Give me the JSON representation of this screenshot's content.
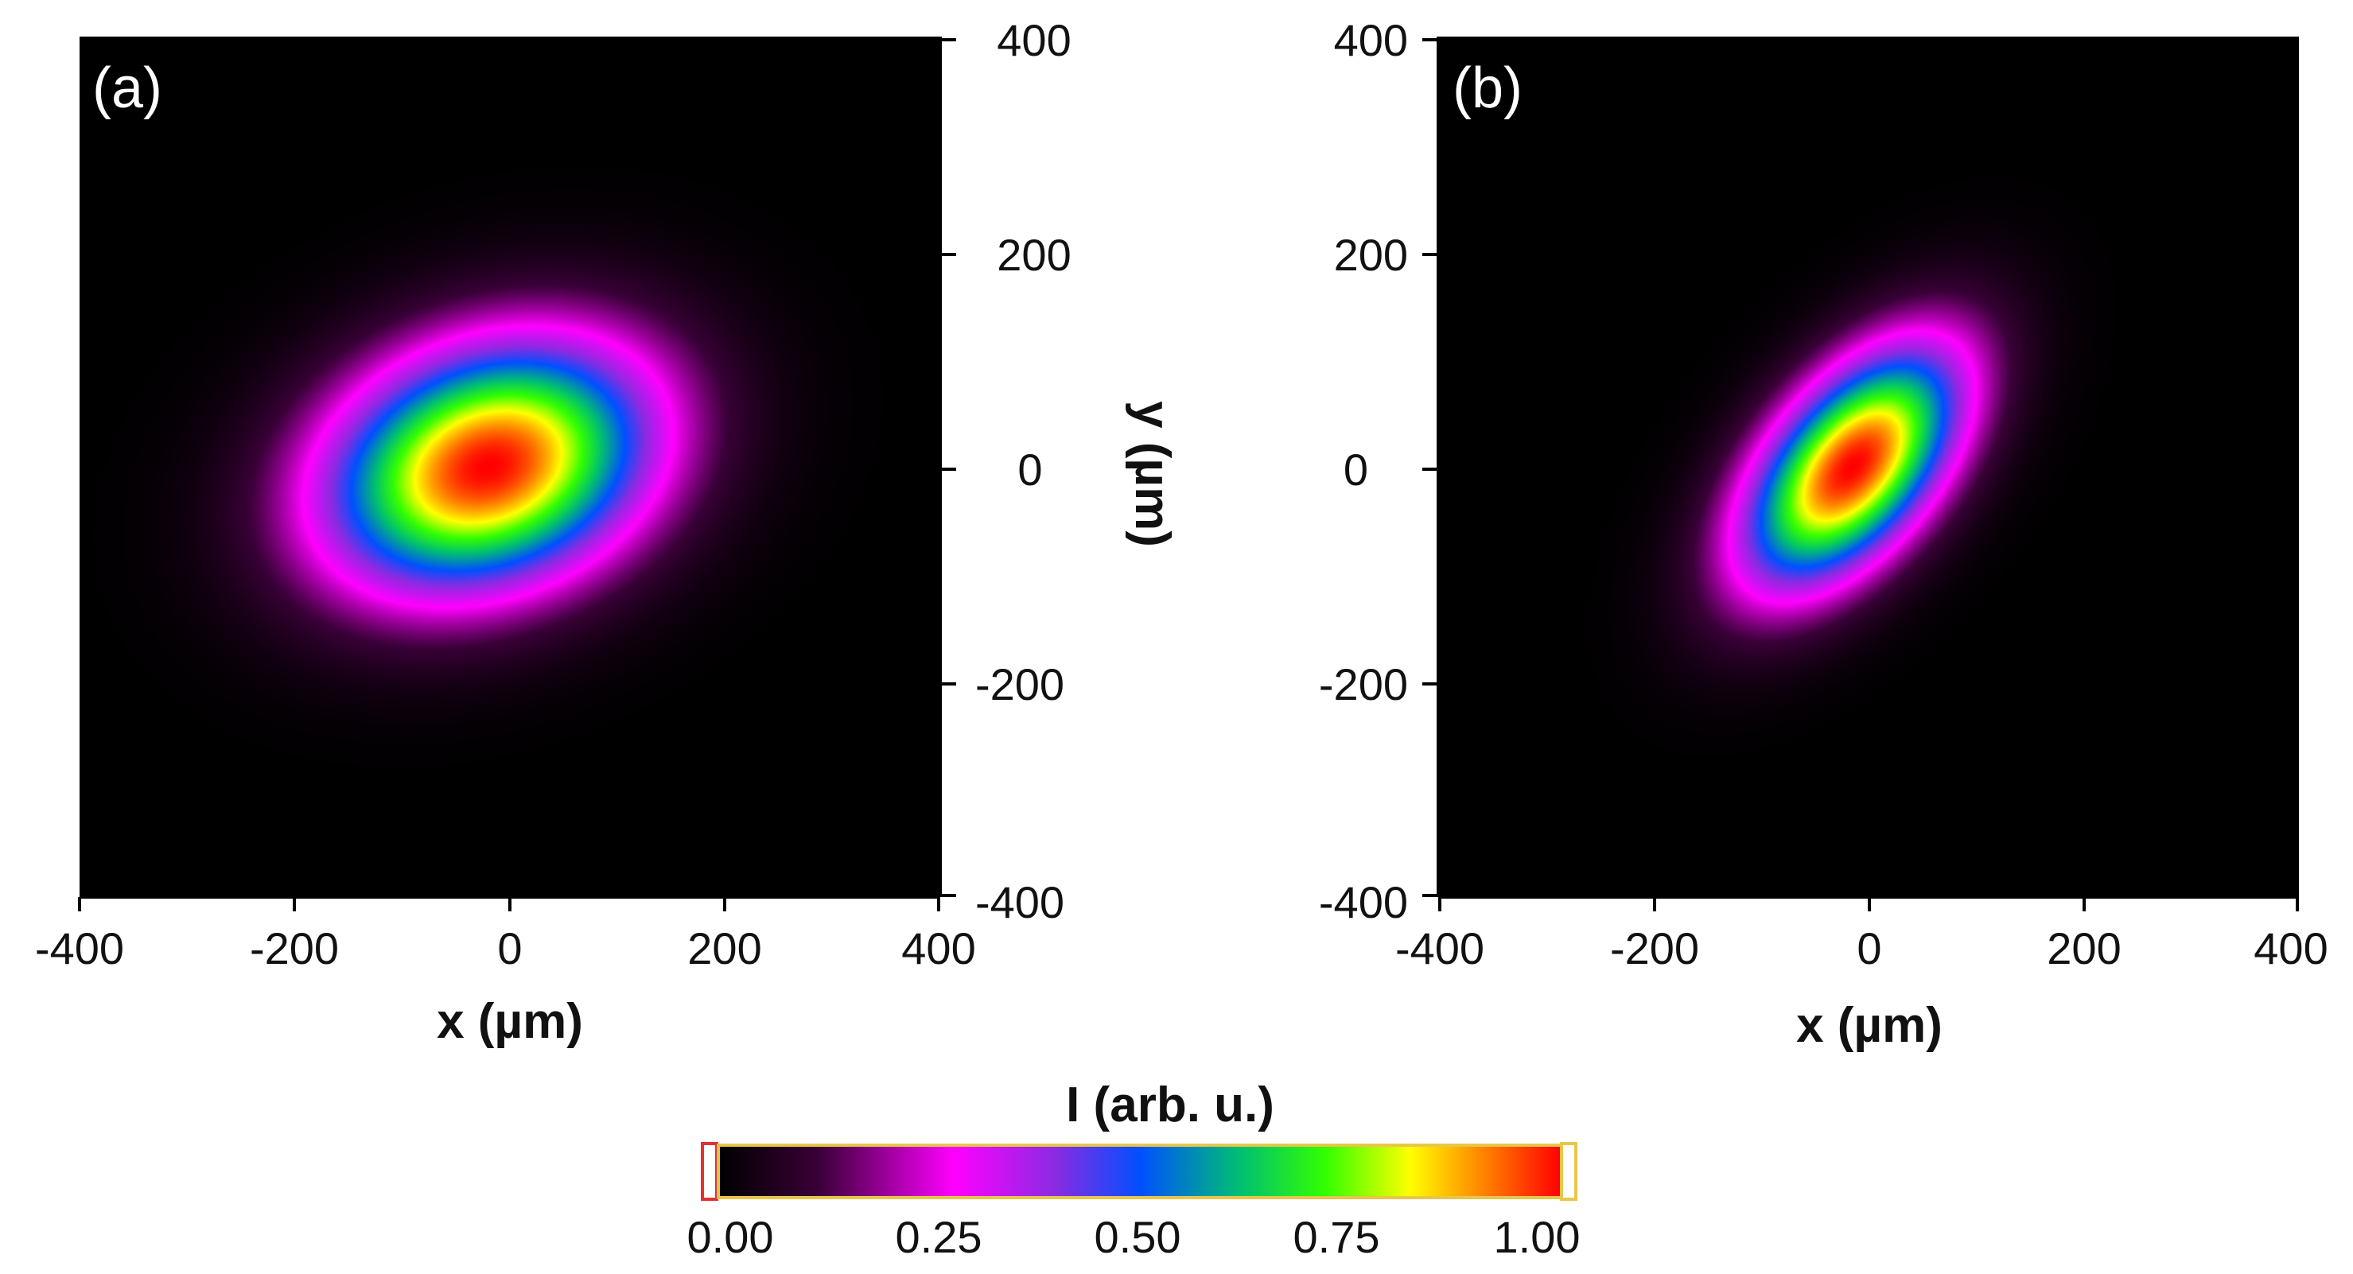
{
  "chart_data": [
    {
      "type": "heatmap",
      "panel_label": "(a)",
      "xlabel": "x (µm)",
      "ylabel": "y (µm)",
      "xlim": [
        -400,
        400
      ],
      "ylim": [
        -400,
        400
      ],
      "xticks": [
        "-400",
        "-200",
        "0",
        "200",
        "400"
      ],
      "yticks": [
        "400",
        "200",
        "0",
        "-200",
        "-400"
      ],
      "yaxis_position": "right",
      "beam": {
        "center": [
          -20,
          0
        ],
        "sigma_major": 165,
        "sigma_minor": 115,
        "angle_deg": 20,
        "peak": 1.0
      }
    },
    {
      "type": "heatmap",
      "panel_label": "(b)",
      "xlabel": "x (µm)",
      "xlim": [
        -400,
        400
      ],
      "ylim": [
        -400,
        400
      ],
      "xticks": [
        "-400",
        "-200",
        "0",
        "200",
        "400"
      ],
      "yticks": [
        "400",
        "200",
        "0",
        "-200",
        "-400"
      ],
      "yaxis_position": "left",
      "beam": {
        "center": [
          -15,
          0
        ],
        "sigma_major": 140,
        "sigma_minor": 75,
        "angle_deg": 50,
        "peak": 1.0
      }
    }
  ],
  "colorbar": {
    "title": "I (arb. u.)",
    "min": 0.0,
    "max": 1.0,
    "ticks": [
      "0.00",
      "0.25",
      "0.50",
      "0.75",
      "1.00"
    ],
    "colors": [
      "#000000",
      "#3a0038",
      "#ff00ff",
      "#8a2be2",
      "#0050ff",
      "#00c070",
      "#33ff00",
      "#ffff00",
      "#ff7f00",
      "#ff0000"
    ]
  }
}
